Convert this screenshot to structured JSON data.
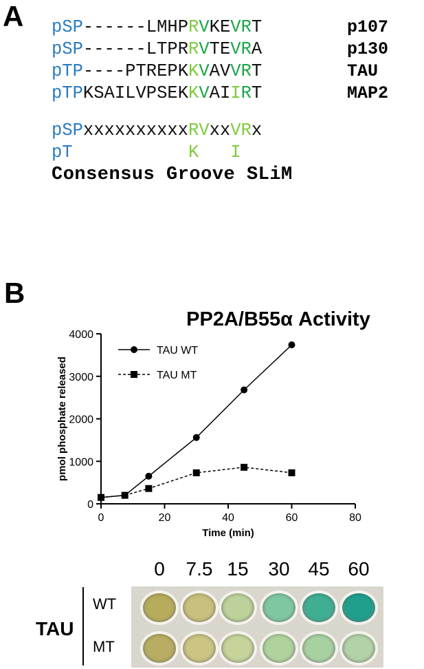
{
  "panel_a": {
    "letter": "A",
    "rows": [
      {
        "prefix": "pSP",
        "residues": [
          "-",
          "-",
          "-",
          "-",
          "-",
          "-",
          "L",
          "M",
          "H",
          "P",
          "R",
          "V",
          "K",
          "E",
          "V",
          "R",
          "T"
        ],
        "colors": [
          "k",
          "k",
          "k",
          "k",
          "k",
          "k",
          "k",
          "k",
          "k",
          "k",
          "lg",
          "dg",
          "k",
          "k",
          "dg",
          "dg",
          "k"
        ],
        "protein": "p107"
      },
      {
        "prefix": "pSP",
        "residues": [
          "-",
          "-",
          "-",
          "-",
          "-",
          "-",
          "L",
          "T",
          "P",
          "R",
          "R",
          "V",
          "T",
          "E",
          "V",
          "R",
          "A"
        ],
        "colors": [
          "k",
          "k",
          "k",
          "k",
          "k",
          "k",
          "k",
          "k",
          "k",
          "k",
          "lg",
          "dg",
          "k",
          "k",
          "dg",
          "dg",
          "k"
        ],
        "protein": "p130"
      },
      {
        "prefix": "pTP",
        "residues": [
          "-",
          "-",
          "-",
          "-",
          "P",
          "T",
          "R",
          "E",
          "P",
          "K",
          "K",
          "V",
          "A",
          "V",
          "V",
          "R",
          "T"
        ],
        "colors": [
          "k",
          "k",
          "k",
          "k",
          "k",
          "k",
          "k",
          "k",
          "k",
          "k",
          "lg",
          "dg",
          "k",
          "k",
          "dg",
          "dg",
          "k"
        ],
        "protein": "TAU"
      },
      {
        "prefix": "pTP",
        "residues": [
          "K",
          "S",
          "A",
          "I",
          "L",
          "V",
          "P",
          "S",
          "E",
          "K",
          "K",
          "V",
          "A",
          "I",
          "I",
          "R",
          "T"
        ],
        "colors": [
          "k",
          "k",
          "k",
          "k",
          "k",
          "k",
          "k",
          "k",
          "k",
          "k",
          "lg",
          "dg",
          "k",
          "k",
          "lg",
          "dg",
          "k"
        ],
        "protein": "MAP2"
      }
    ],
    "consensus_rows": [
      {
        "prefix": "pSP",
        "residues": [
          "x",
          "x",
          "x",
          "x",
          "x",
          "x",
          "x",
          "x",
          "x",
          "x",
          "R",
          "V",
          "x",
          "x",
          "V",
          "R",
          "x"
        ],
        "colors": [
          "k",
          "k",
          "k",
          "k",
          "k",
          "k",
          "k",
          "k",
          "k",
          "k",
          "lg",
          "lg",
          "k",
          "k",
          "lg",
          "lg",
          "k"
        ]
      },
      {
        "prefix": "pT",
        "residues": [
          " ",
          " ",
          " ",
          " ",
          " ",
          " ",
          " ",
          " ",
          " ",
          " ",
          "K",
          " ",
          " ",
          " ",
          "I",
          " ",
          " "
        ],
        "colors": [
          "k",
          "k",
          "k",
          "k",
          "k",
          "k",
          "k",
          "k",
          "k",
          "k",
          "lg",
          "k",
          "k",
          "k",
          "lg",
          "k",
          "k"
        ]
      }
    ],
    "consensus_label": "Consensus Groove SLiM",
    "colors": {
      "prefix": "#2a7bbf",
      "light_green": "#7fcb3c",
      "dark_green": "#1aa64a"
    }
  },
  "panel_b": {
    "letter": "B",
    "plate": {
      "group_label": "TAU",
      "timepoints": [
        "0",
        "7.5",
        "15",
        "30",
        "45",
        "60"
      ],
      "rows": [
        {
          "label": "WT",
          "well_colors": [
            "#b7ac5c",
            "#c8c07c",
            "#bcd29a",
            "#7fc7a0",
            "#3fae92",
            "#209f8e"
          ]
        },
        {
          "label": "MT",
          "well_colors": [
            "#b8ad62",
            "#cbc483",
            "#c6d39a",
            "#b0d39d",
            "#a8d1a2",
            "#b2d2a8"
          ]
        }
      ]
    }
  },
  "chart_data": {
    "type": "line",
    "title": "PP2A/B55α Activity",
    "xlabel": "Time (min)",
    "ylabel": "pmol phosphate released",
    "xlim": [
      0,
      80
    ],
    "ylim": [
      0,
      4000
    ],
    "xticks": [
      0,
      20,
      40,
      60,
      80
    ],
    "yticks": [
      0,
      1000,
      2000,
      3000,
      4000
    ],
    "grid": false,
    "legend": "top-left",
    "series": [
      {
        "name": "TAU WT",
        "marker": "circle",
        "line": "solid",
        "x": [
          0,
          7.5,
          15,
          30,
          45,
          60
        ],
        "y": [
          150,
          200,
          650,
          1560,
          2680,
          3740
        ]
      },
      {
        "name": "TAU MT",
        "marker": "square",
        "line": "dashed",
        "x": [
          0,
          7.5,
          15,
          30,
          45,
          60
        ],
        "y": [
          150,
          200,
          360,
          730,
          860,
          730
        ]
      }
    ]
  }
}
